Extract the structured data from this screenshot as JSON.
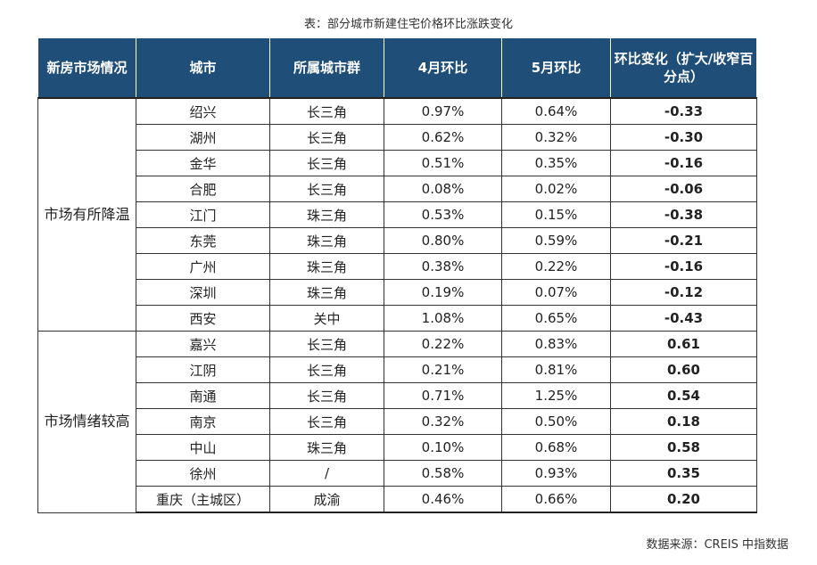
{
  "title": "表：部分城市新建住宅价格环比涨跌变化",
  "source": "数据来源：CREIS 中指数据",
  "chart_data": {
    "type": "table",
    "title": "表：部分城市新建住宅价格环比涨跌变化",
    "columns": [
      "新房市场情况",
      "城市",
      "所属城市群",
      "4月环比",
      "5月环比",
      "环比变化（扩大/收窄百分点）"
    ],
    "groups": [
      {
        "label": "市场有所降温",
        "rows": [
          {
            "city": "绍兴",
            "cluster": "长三角",
            "apr": "0.97%",
            "may": "0.64%",
            "change": "-0.33"
          },
          {
            "city": "湖州",
            "cluster": "长三角",
            "apr": "0.62%",
            "may": "0.32%",
            "change": "-0.30"
          },
          {
            "city": "金华",
            "cluster": "长三角",
            "apr": "0.51%",
            "may": "0.35%",
            "change": "-0.16"
          },
          {
            "city": "合肥",
            "cluster": "长三角",
            "apr": "0.08%",
            "may": "0.02%",
            "change": "-0.06"
          },
          {
            "city": "江门",
            "cluster": "珠三角",
            "apr": "0.53%",
            "may": "0.15%",
            "change": "-0.38"
          },
          {
            "city": "东莞",
            "cluster": "珠三角",
            "apr": "0.80%",
            "may": "0.59%",
            "change": "-0.21"
          },
          {
            "city": "广州",
            "cluster": "珠三角",
            "apr": "0.38%",
            "may": "0.22%",
            "change": "-0.16"
          },
          {
            "city": "深圳",
            "cluster": "珠三角",
            "apr": "0.19%",
            "may": "0.07%",
            "change": "-0.12"
          },
          {
            "city": "西安",
            "cluster": "关中",
            "apr": "1.08%",
            "may": "0.65%",
            "change": "-0.43"
          }
        ]
      },
      {
        "label": "市场情绪较高",
        "rows": [
          {
            "city": "嘉兴",
            "cluster": "长三角",
            "apr": "0.22%",
            "may": "0.83%",
            "change": "0.61"
          },
          {
            "city": "江阴",
            "cluster": "长三角",
            "apr": "0.21%",
            "may": "0.81%",
            "change": "0.60"
          },
          {
            "city": "南通",
            "cluster": "长三角",
            "apr": "0.71%",
            "may": "1.25%",
            "change": "0.54"
          },
          {
            "city": "南京",
            "cluster": "长三角",
            "apr": "0.32%",
            "may": "0.50%",
            "change": "0.18"
          },
          {
            "city": "中山",
            "cluster": "珠三角",
            "apr": "0.10%",
            "may": "0.68%",
            "change": "0.58"
          },
          {
            "city": "徐州",
            "cluster": "/",
            "apr": "0.58%",
            "may": "0.93%",
            "change": "0.35"
          },
          {
            "city": "重庆（主城区）",
            "cluster": "成渝",
            "apr": "0.46%",
            "may": "0.66%",
            "change": "0.20"
          }
        ]
      }
    ]
  },
  "colors": {
    "header_bg": "#1f4e79",
    "header_text": "#ffffff",
    "border": "#333333"
  }
}
